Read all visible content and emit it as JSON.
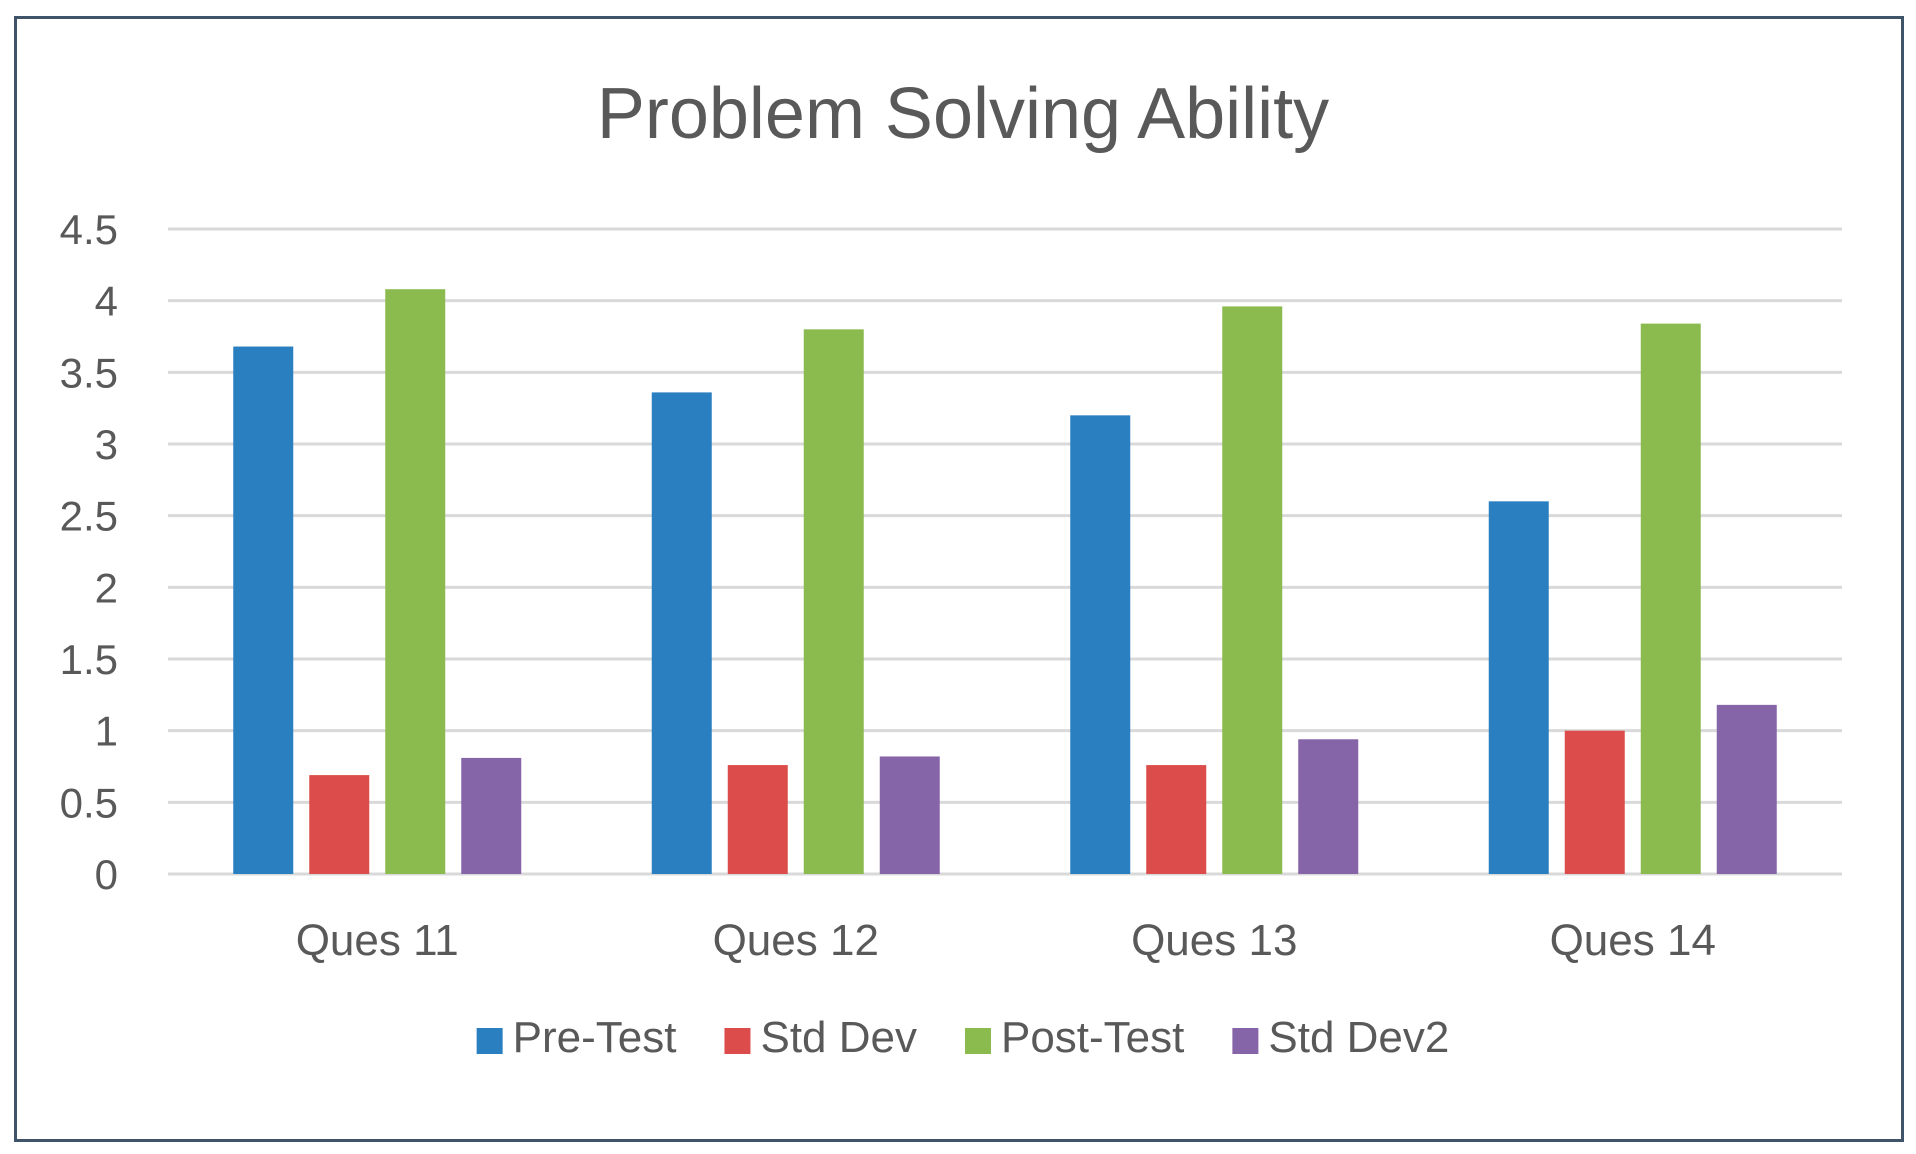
{
  "chart_data": {
    "type": "bar",
    "title": "Problem Solving Ability",
    "xlabel": "",
    "ylabel": "",
    "ylim": [
      0,
      4.5
    ],
    "yticks": [
      "0",
      "0.5",
      "1",
      "1.5",
      "2",
      "2.5",
      "3",
      "3.5",
      "4",
      "4.5"
    ],
    "grid": true,
    "legend_position": "bottom",
    "categories": [
      "Ques 11",
      "Ques 12",
      "Ques 13",
      "Ques 14"
    ],
    "series": [
      {
        "name": "Pre-Test",
        "color": "#2a7fc1",
        "values": [
          3.68,
          3.36,
          3.2,
          2.6
        ]
      },
      {
        "name": "Std Dev",
        "color": "#dc4c4a",
        "values": [
          0.69,
          0.76,
          0.76,
          1.0
        ]
      },
      {
        "name": "Post-Test",
        "color": "#8bbb4f",
        "values": [
          4.08,
          3.8,
          3.96,
          3.84
        ]
      },
      {
        "name": "Std Dev2",
        "color": "#8664a8",
        "values": [
          0.81,
          0.82,
          0.94,
          1.18
        ]
      }
    ]
  }
}
